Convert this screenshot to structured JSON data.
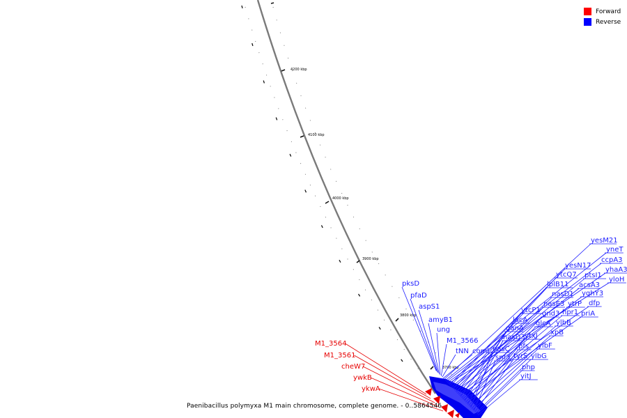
{
  "legend": {
    "items": [
      {
        "label": "Forward",
        "color": "#ff0000"
      },
      {
        "label": "Reverse",
        "color": "#0000ff"
      }
    ]
  },
  "caption": "Paenibacillus polymyxa M1 main chromosome, complete genome. - 0..5864546",
  "ticks": [
    "4200 kbp",
    "4100 kbp",
    "4000 kbp",
    "3900 kbp",
    "3800 kbp",
    "3700 kbp"
  ],
  "reverse_genes": [
    "pksD",
    "pfaD",
    "aspS1",
    "amyB1",
    "ung",
    "M1_3566",
    "tNN",
    "comI",
    "yesM21",
    "yneT",
    "ccpA3",
    "yhaA3",
    "yloH",
    "yesN17",
    "ytcQ7",
    "ptsI1",
    "acsA3",
    "lplB11",
    "nasD1",
    "yqhY3",
    "ytcP1",
    "nasE3",
    "ytrP",
    "dfp",
    "lacA",
    "gnd3",
    "hpr1",
    "priA",
    "ganA",
    "glcA",
    "ylbB",
    "nasD3",
    "ytxJ",
    "xpB",
    "nasC",
    "pfs",
    "ylbF",
    "snf3",
    "tyrS",
    "ylbG",
    "php",
    "yitJ"
  ],
  "forward_genes": [
    "M1_3564",
    "M1_3561",
    "cheW7",
    "ywkB",
    "ykwA"
  ]
}
